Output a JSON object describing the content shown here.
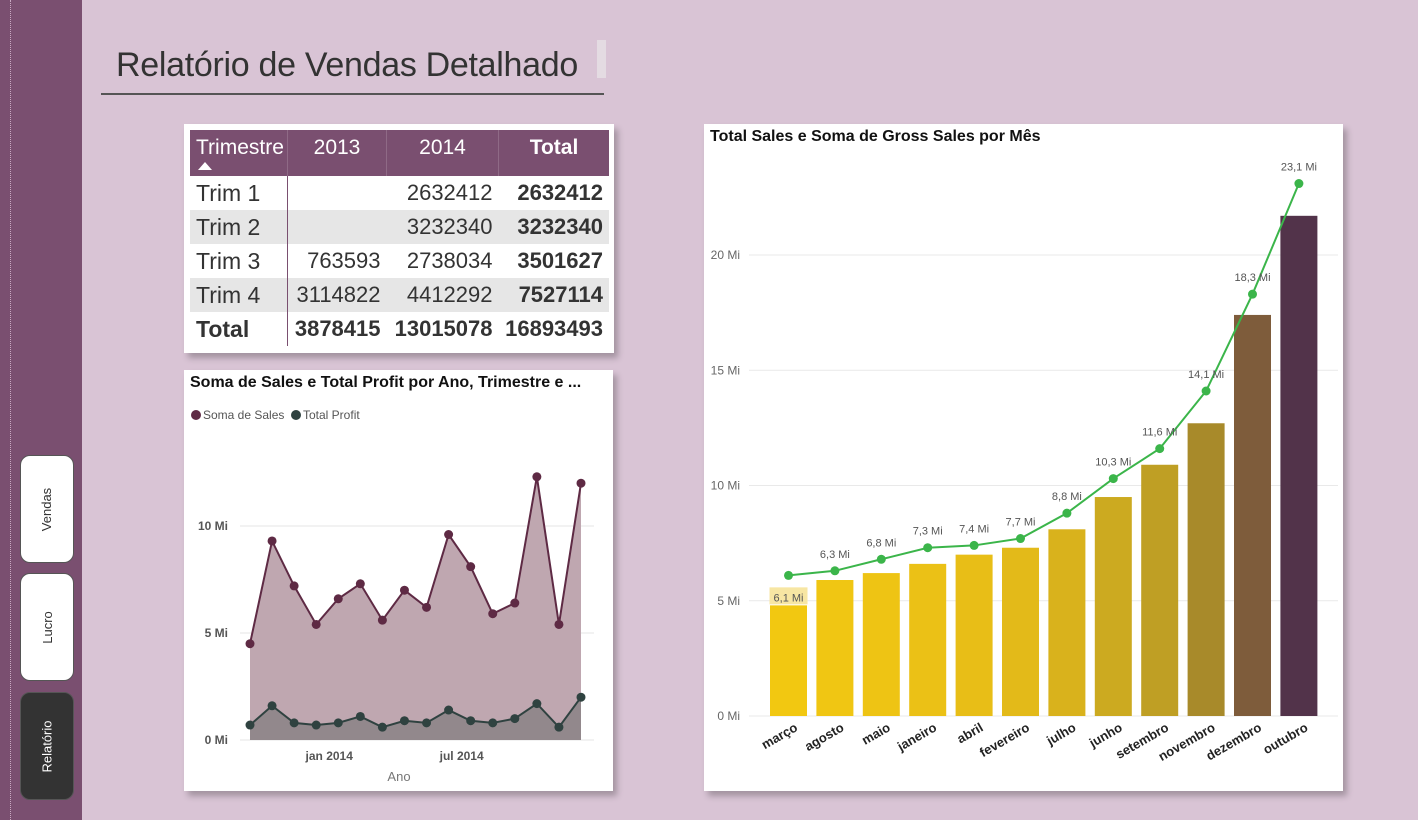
{
  "page": {
    "title": "Relatório de Vendas Detalhado"
  },
  "nav": {
    "items": [
      {
        "label": "Vendas"
      },
      {
        "label": "Lucro"
      },
      {
        "label": "Relatório"
      }
    ]
  },
  "colors": {
    "sidebar": "#7a4f70",
    "background": "#d9c4d5",
    "sales": "#5e2a44",
    "profit": "#2f4240",
    "line_green": "#3bb54a"
  },
  "matrix": {
    "headers": [
      "Trimestre",
      "2013",
      "2014",
      "Total"
    ],
    "sort_icon": "sort-ascending-icon",
    "rows": [
      {
        "label": "Trim 1",
        "y2013": "",
        "y2014": "2632412",
        "total": "2632412"
      },
      {
        "label": "Trim 2",
        "y2013": "",
        "y2014": "3232340",
        "total": "3232340"
      },
      {
        "label": "Trim 3",
        "y2013": "763593",
        "y2014": "2738034",
        "total": "3501627"
      },
      {
        "label": "Trim 4",
        "y2013": "3114822",
        "y2014": "4412292",
        "total": "7527114"
      }
    ],
    "total": {
      "label": "Total",
      "y2013": "3878415",
      "y2014": "13015078",
      "total": "16893493"
    }
  },
  "chart_data": [
    {
      "type": "area",
      "title": "Soma de  Sales e Total Profit por Ano, Trimestre e ...",
      "xlabel": "Ano",
      "x_ticks": [
        "jan 2014",
        "jul 2014"
      ],
      "y_ticks": [
        "0 Mi",
        "5 Mi",
        "10 Mi"
      ],
      "ylim": [
        0,
        13.5
      ],
      "legend_position": "top-left",
      "series": [
        {
          "name": "Soma de  Sales",
          "values": [
            4.5,
            9.3,
            7.2,
            5.4,
            6.6,
            7.3,
            5.6,
            7.0,
            6.2,
            9.6,
            8.1,
            5.9,
            6.4,
            12.3,
            5.4,
            12.0
          ]
        },
        {
          "name": "Total Profit",
          "values": [
            0.7,
            1.6,
            0.8,
            0.7,
            0.8,
            1.1,
            0.6,
            0.9,
            0.8,
            1.4,
            0.9,
            0.8,
            1.0,
            1.7,
            0.6,
            2.0
          ]
        }
      ]
    },
    {
      "type": "bar",
      "title": "Total Sales e Soma de Gross Sales por Mês",
      "categories": [
        "março",
        "agosto",
        "maio",
        "janeiro",
        "abril",
        "fevereiro",
        "julho",
        "junho",
        "setembro",
        "novembro",
        "dezembro",
        "outubro"
      ],
      "y_ticks": [
        "0 Mi",
        "5 Mi",
        "10 Mi",
        "15 Mi",
        "20 Mi"
      ],
      "ylim": [
        0,
        24
      ],
      "grid": true,
      "series": [
        {
          "values": [
            4.8,
            5.9,
            6.2,
            6.6,
            7.0,
            7.3,
            8.1,
            9.5,
            10.9,
            12.7,
            17.4,
            21.7
          ],
          "colors": [
            "#f2c811",
            "#f0c613",
            "#eec414",
            "#ebc116",
            "#e8be17",
            "#e3ba19",
            "#d9b21c",
            "#ccaa20",
            "#bf9f24",
            "#a88a2a",
            "#7e5c3b",
            "#52334a"
          ]
        },
        {
          "values": [
            6.1,
            6.3,
            6.8,
            7.3,
            7.4,
            7.7,
            8.8,
            10.3,
            11.6,
            14.1,
            18.3,
            23.1
          ],
          "labels": [
            "6,1 Mi",
            "6,3 Mi",
            "6,8 Mi",
            "7,3 Mi",
            "7,4 Mi",
            "7,7 Mi",
            "8,8 Mi",
            "10,3 Mi",
            "11,6 Mi",
            "14,1 Mi",
            "18,3 Mi",
            "23,1 Mi"
          ]
        }
      ]
    }
  ]
}
